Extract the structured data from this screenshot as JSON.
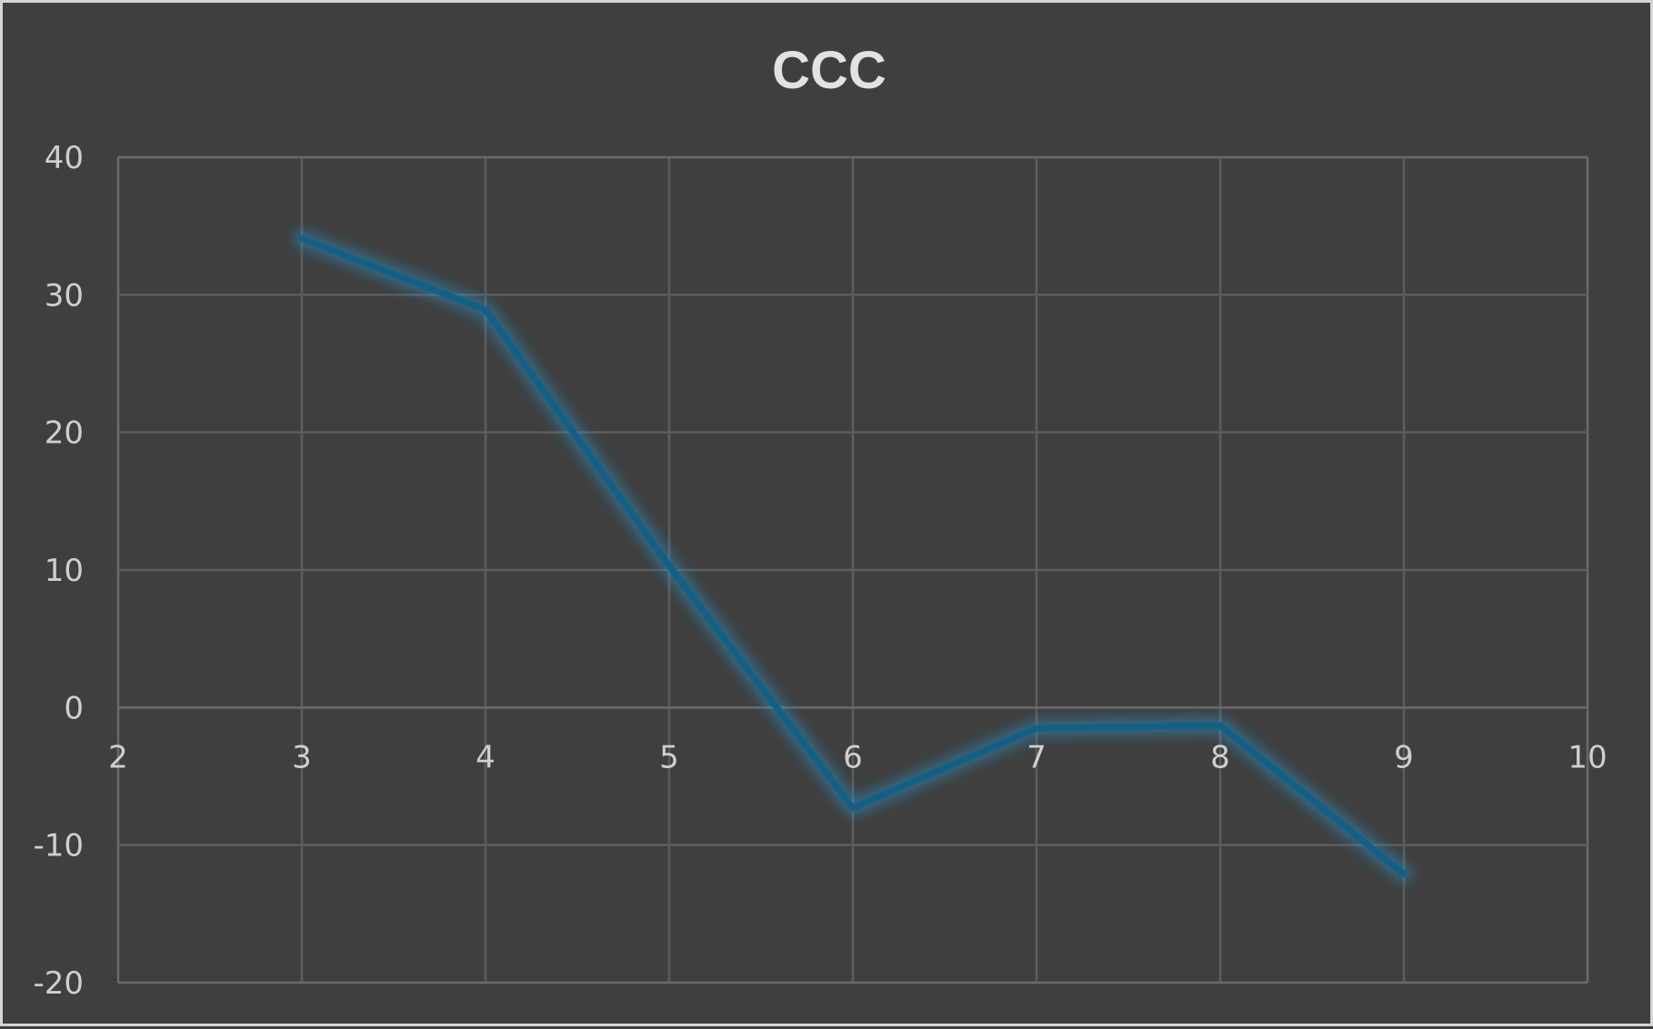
{
  "chart_data": {
    "type": "line",
    "title": "CCC",
    "xlabel": "",
    "ylabel": "",
    "xlim": [
      2,
      10
    ],
    "ylim": [
      -20,
      40
    ],
    "x_ticks": [
      2,
      3,
      4,
      5,
      6,
      7,
      8,
      9,
      10
    ],
    "y_ticks": [
      -20,
      -10,
      0,
      10,
      20,
      30,
      40
    ],
    "grid": true,
    "legend": "none",
    "series": [
      {
        "color": "#135f86",
        "glow_color": "#2a8fc4",
        "x": [
          3,
          4,
          5,
          6,
          7,
          8,
          9
        ],
        "y": [
          34.1,
          28.9,
          10.3,
          -7.3,
          -1.5,
          -1.3,
          -12.1
        ]
      }
    ]
  }
}
